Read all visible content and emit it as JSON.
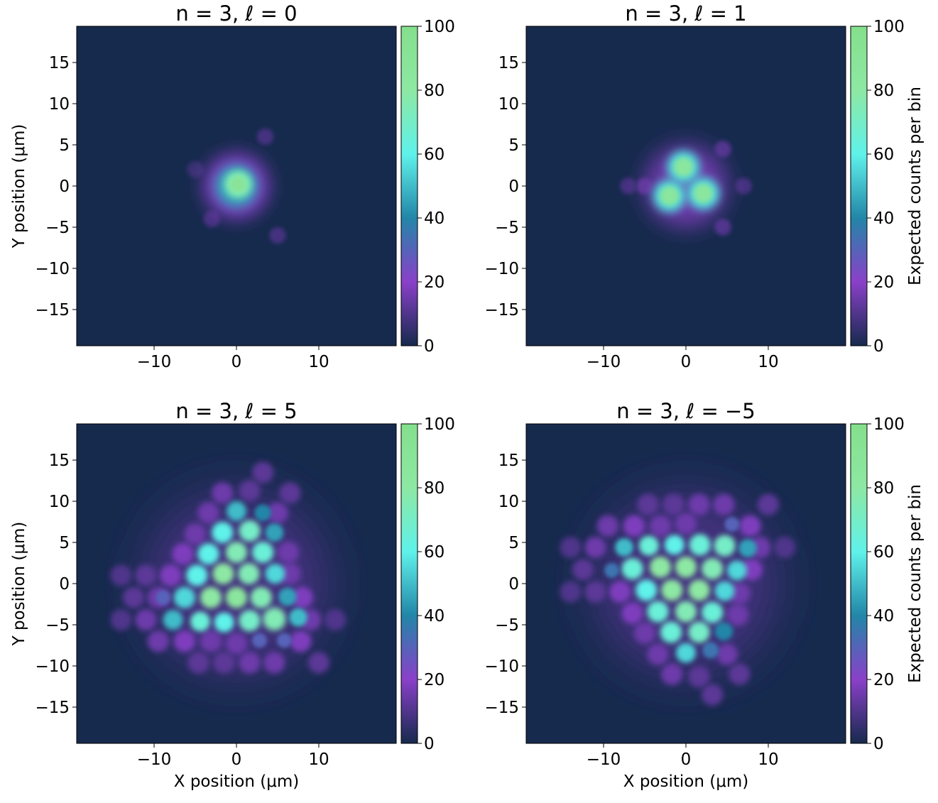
{
  "chart_data": [
    {
      "type": "heatmap",
      "title": "n = 3, ℓ = 0",
      "ylabel": "Y position (μm)",
      "xlim": [
        -19.4,
        19.4
      ],
      "ylim": [
        -19.4,
        19.4
      ],
      "xticks": [
        {
          "value": -10,
          "label": "−10"
        },
        0,
        10
      ],
      "yticks": [
        {
          "value": -15,
          "label": "−15"
        },
        {
          "value": -10,
          "label": "−10"
        },
        {
          "value": -5,
          "label": "−5"
        },
        0,
        5,
        10,
        15
      ],
      "clim": [
        0,
        100
      ],
      "cticks": [
        0,
        20,
        40,
        60,
        80,
        100
      ],
      "colormap": [
        "#162a4d",
        "#8a40c9",
        "#2286a8",
        "#5ff2ea",
        "#8de8a3",
        "#84e08c"
      ],
      "spots": [
        {
          "x": 3.5,
          "y": 6,
          "r": 1,
          "value": 8
        },
        {
          "x": -3,
          "y": -4,
          "r": 1,
          "value": 8
        },
        {
          "x": 5,
          "y": -6,
          "r": 1,
          "value": 8
        },
        {
          "x": -5,
          "y": 2,
          "r": 1,
          "value": 6
        },
        {
          "x": 0,
          "y": 0,
          "r": 4,
          "value": 18
        },
        {
          "x": 0,
          "y": 0,
          "r": 2.6,
          "value": 45
        },
        {
          "x": 0.2,
          "y": 0.2,
          "r": 1.7,
          "value": 75
        },
        {
          "x": 0.2,
          "y": 0.2,
          "r": 1,
          "value": 90
        }
      ]
    },
    {
      "type": "heatmap",
      "title": "n = 3, ℓ = 1",
      "colorbar_label": "Expected counts per bin",
      "xlim": [
        -19.4,
        19.4
      ],
      "ylim": [
        -19.4,
        19.4
      ],
      "xticks": [
        {
          "value": -10,
          "label": "−10"
        },
        0,
        10
      ],
      "yticks": [
        {
          "value": -15,
          "label": "−15"
        },
        {
          "value": -10,
          "label": "−10"
        },
        {
          "value": -5,
          "label": "−5"
        },
        0,
        5,
        10,
        15
      ],
      "clim": [
        0,
        100
      ],
      "cticks": [
        0,
        20,
        40,
        60,
        80,
        100
      ],
      "colormap": [
        "#162a4d",
        "#8a40c9",
        "#2286a8",
        "#5ff2ea",
        "#8de8a3",
        "#84e08c"
      ],
      "spots": [
        {
          "x": -5,
          "y": 0,
          "r": 1,
          "value": 12
        },
        {
          "x": -7,
          "y": 0,
          "r": 1,
          "value": 8
        },
        {
          "x": 4.5,
          "y": 4.5,
          "r": 1,
          "value": 10
        },
        {
          "x": 4.5,
          "y": -5,
          "r": 1,
          "value": 10
        },
        {
          "x": 7,
          "y": 0,
          "r": 1,
          "value": 8
        },
        {
          "x": 0,
          "y": 0,
          "r": 5,
          "value": 15
        },
        {
          "x": -0.3,
          "y": 2.3,
          "r": 2,
          "value": 55
        },
        {
          "x": -2,
          "y": -1.2,
          "r": 2,
          "value": 55
        },
        {
          "x": 2.1,
          "y": -0.9,
          "r": 2,
          "value": 55
        },
        {
          "x": -0.3,
          "y": 2.3,
          "r": 1.2,
          "value": 85
        },
        {
          "x": -2,
          "y": -1.2,
          "r": 1.2,
          "value": 85
        },
        {
          "x": 2.1,
          "y": -0.9,
          "r": 1.2,
          "value": 85
        }
      ]
    },
    {
      "type": "heatmap",
      "title": "n = 3, ℓ = 5",
      "xlabel": "X position (μm)",
      "ylabel": "Y position (μm)",
      "xlim": [
        -19.4,
        19.4
      ],
      "ylim": [
        -19.4,
        19.4
      ],
      "xticks": [
        {
          "value": -10,
          "label": "−10"
        },
        0,
        10
      ],
      "yticks": [
        {
          "value": -15,
          "label": "−15"
        },
        {
          "value": -10,
          "label": "−10"
        },
        {
          "value": -5,
          "label": "−5"
        },
        0,
        5,
        10,
        15
      ],
      "clim": [
        0,
        100
      ],
      "cticks": [
        0,
        20,
        40,
        60,
        80,
        100
      ],
      "colormap": [
        "#162a4d",
        "#8a40c9",
        "#2286a8",
        "#5ff2ea",
        "#8de8a3",
        "#84e08c"
      ],
      "spots": [
        {
          "x": 0,
          "y": 0,
          "r": 11,
          "value": 8
        },
        {
          "x": -1.7,
          "y": 11,
          "r": 1.3,
          "value": 15
        },
        {
          "x": 1.6,
          "y": 11.3,
          "r": 1.3,
          "value": 12
        },
        {
          "x": -3.4,
          "y": 8.6,
          "r": 1.3,
          "value": 15
        },
        {
          "x": -5,
          "y": 6,
          "r": 1.3,
          "value": 15
        },
        {
          "x": -6.5,
          "y": 3.6,
          "r": 1.3,
          "value": 18
        },
        {
          "x": -8,
          "y": 1,
          "r": 1.3,
          "value": 18
        },
        {
          "x": -9.5,
          "y": -1.7,
          "r": 1.3,
          "value": 15
        },
        {
          "x": -11,
          "y": 1,
          "r": 1.3,
          "value": 12
        },
        {
          "x": -12.5,
          "y": -1.7,
          "r": 1.3,
          "value": 12
        },
        {
          "x": -11,
          "y": -4.4,
          "r": 1.3,
          "value": 15
        },
        {
          "x": -9.5,
          "y": -7,
          "r": 1.3,
          "value": 15
        },
        {
          "x": -6.3,
          "y": -7,
          "r": 1.3,
          "value": 18
        },
        {
          "x": -3.1,
          "y": -7,
          "r": 1.3,
          "value": 15
        },
        {
          "x": 0,
          "y": -7.3,
          "r": 1.3,
          "value": 15
        },
        {
          "x": -4.6,
          "y": -9.6,
          "r": 1.3,
          "value": 12
        },
        {
          "x": -1.5,
          "y": -9.6,
          "r": 1.3,
          "value": 12
        },
        {
          "x": 1.6,
          "y": -9.6,
          "r": 1.3,
          "value": 15
        },
        {
          "x": 4.6,
          "y": -9.6,
          "r": 1.3,
          "value": 15
        },
        {
          "x": 7.8,
          "y": -7,
          "r": 1.3,
          "value": 18
        },
        {
          "x": 9,
          "y": -4.4,
          "r": 1.3,
          "value": 15
        },
        {
          "x": 8,
          "y": -1.7,
          "r": 1.3,
          "value": 18
        },
        {
          "x": 6.5,
          "y": 1.2,
          "r": 1.3,
          "value": 15
        },
        {
          "x": 6.3,
          "y": 3.8,
          "r": 1.3,
          "value": 15
        },
        {
          "x": 5,
          "y": 8.6,
          "r": 1.3,
          "value": 15
        },
        {
          "x": 6.5,
          "y": 11,
          "r": 1.3,
          "value": 12
        },
        {
          "x": 3.2,
          "y": 13.5,
          "r": 1.3,
          "value": 12
        },
        {
          "x": 10,
          "y": -9.6,
          "r": 1.3,
          "value": 12
        },
        {
          "x": 12,
          "y": -4.4,
          "r": 1.3,
          "value": 10
        },
        {
          "x": -14,
          "y": -4.4,
          "r": 1.3,
          "value": 10
        },
        {
          "x": -14,
          "y": 1,
          "r": 1.3,
          "value": 10
        },
        {
          "x": 0,
          "y": 8.8,
          "r": 1.2,
          "value": 50
        },
        {
          "x": 3.2,
          "y": 8.6,
          "r": 1,
          "value": 40
        },
        {
          "x": -1.7,
          "y": 6.2,
          "r": 1.3,
          "value": 60
        },
        {
          "x": 1.6,
          "y": 6.4,
          "r": 1.3,
          "value": 70
        },
        {
          "x": 4.6,
          "y": 6.2,
          "r": 1.1,
          "value": 45
        },
        {
          "x": -3.4,
          "y": 3.6,
          "r": 1.3,
          "value": 60
        },
        {
          "x": 0,
          "y": 3.8,
          "r": 1.3,
          "value": 75
        },
        {
          "x": 3.2,
          "y": 3.8,
          "r": 1.3,
          "value": 65
        },
        {
          "x": -4.8,
          "y": 1,
          "r": 1.3,
          "value": 60
        },
        {
          "x": -1.6,
          "y": 1.2,
          "r": 1.3,
          "value": 80
        },
        {
          "x": 1.5,
          "y": 1.2,
          "r": 1.3,
          "value": 75
        },
        {
          "x": 4.7,
          "y": 1.2,
          "r": 1.2,
          "value": 55
        },
        {
          "x": -6.3,
          "y": -1.7,
          "r": 1.3,
          "value": 55
        },
        {
          "x": -3.1,
          "y": -1.7,
          "r": 1.3,
          "value": 80
        },
        {
          "x": 0,
          "y": -1.7,
          "r": 1.3,
          "value": 85
        },
        {
          "x": 3,
          "y": -1.7,
          "r": 1.3,
          "value": 75
        },
        {
          "x": 6.2,
          "y": -1.6,
          "r": 1.1,
          "value": 45
        },
        {
          "x": -7.7,
          "y": -4.4,
          "r": 1.2,
          "value": 50
        },
        {
          "x": -4.4,
          "y": -4.6,
          "r": 1.2,
          "value": 65
        },
        {
          "x": -1.5,
          "y": -4.7,
          "r": 1.2,
          "value": 60
        },
        {
          "x": 1.6,
          "y": -4.5,
          "r": 1.3,
          "value": 70
        },
        {
          "x": 4.6,
          "y": -4.3,
          "r": 1.4,
          "value": 75
        },
        {
          "x": 7.5,
          "y": -4.1,
          "r": 1.1,
          "value": 50
        },
        {
          "x": 2.8,
          "y": -6.9,
          "r": 0.9,
          "value": 30
        },
        {
          "x": 5.8,
          "y": -6.9,
          "r": 0.9,
          "value": 30
        },
        {
          "x": -8.9,
          "y": -1.7,
          "r": 0.9,
          "value": 30
        }
      ]
    },
    {
      "type": "heatmap",
      "title": "n = 3, ℓ = −5",
      "xlabel": "X position (μm)",
      "colorbar_label": "Expected counts per bin",
      "xlim": [
        -19.4,
        19.4
      ],
      "ylim": [
        -19.4,
        19.4
      ],
      "xticks": [
        {
          "value": -10,
          "label": "−10"
        },
        0,
        10
      ],
      "yticks": [
        {
          "value": -15,
          "label": "−15"
        },
        {
          "value": -10,
          "label": "−10"
        },
        {
          "value": -5,
          "label": "−5"
        },
        0,
        5,
        10,
        15
      ],
      "clim": [
        0,
        100
      ],
      "cticks": [
        0,
        20,
        40,
        60,
        80,
        100
      ],
      "colormap": [
        "#162a4d",
        "#8a40c9",
        "#2286a8",
        "#5ff2ea",
        "#8de8a3",
        "#84e08c"
      ],
      "spots": [
        {
          "x": 0,
          "y": 0,
          "r": 11,
          "value": 8
        },
        {
          "x": -1.7,
          "y": -11,
          "r": 1.3,
          "value": 15
        },
        {
          "x": 1.6,
          "y": -11.3,
          "r": 1.3,
          "value": 12
        },
        {
          "x": -3.4,
          "y": -8.6,
          "r": 1.3,
          "value": 15
        },
        {
          "x": -5,
          "y": -6,
          "r": 1.3,
          "value": 15
        },
        {
          "x": -6.5,
          "y": -3.6,
          "r": 1.3,
          "value": 18
        },
        {
          "x": -8,
          "y": -1,
          "r": 1.3,
          "value": 18
        },
        {
          "x": -11,
          "y": -1,
          "r": 1.3,
          "value": 12
        },
        {
          "x": -12.5,
          "y": 1.7,
          "r": 1.3,
          "value": 12
        },
        {
          "x": -11,
          "y": 4.4,
          "r": 1.3,
          "value": 15
        },
        {
          "x": -9.5,
          "y": 7,
          "r": 1.3,
          "value": 15
        },
        {
          "x": -6.3,
          "y": 7,
          "r": 1.3,
          "value": 18
        },
        {
          "x": -3.1,
          "y": 7,
          "r": 1.3,
          "value": 15
        },
        {
          "x": 0,
          "y": 7.3,
          "r": 1.3,
          "value": 15
        },
        {
          "x": -4.6,
          "y": 9.6,
          "r": 1.3,
          "value": 12
        },
        {
          "x": -1.5,
          "y": 9.6,
          "r": 1.3,
          "value": 12
        },
        {
          "x": 1.6,
          "y": 9.6,
          "r": 1.3,
          "value": 15
        },
        {
          "x": 4.6,
          "y": 9.6,
          "r": 1.3,
          "value": 15
        },
        {
          "x": 7.8,
          "y": 7,
          "r": 1.3,
          "value": 18
        },
        {
          "x": 9,
          "y": 4.4,
          "r": 1.3,
          "value": 15
        },
        {
          "x": 8,
          "y": 1.7,
          "r": 1.3,
          "value": 18
        },
        {
          "x": 6.5,
          "y": -1.2,
          "r": 1.3,
          "value": 15
        },
        {
          "x": 6.3,
          "y": -3.8,
          "r": 1.3,
          "value": 15
        },
        {
          "x": 5,
          "y": -8.6,
          "r": 1.3,
          "value": 15
        },
        {
          "x": 6.5,
          "y": -11,
          "r": 1.3,
          "value": 12
        },
        {
          "x": 3.2,
          "y": -13.5,
          "r": 1.3,
          "value": 12
        },
        {
          "x": 10,
          "y": 9.6,
          "r": 1.3,
          "value": 12
        },
        {
          "x": 12,
          "y": 4.4,
          "r": 1.3,
          "value": 10
        },
        {
          "x": -14,
          "y": 4.4,
          "r": 1.3,
          "value": 10
        },
        {
          "x": -14,
          "y": -1,
          "r": 1.3,
          "value": 10
        },
        {
          "x": 0,
          "y": -8.4,
          "r": 1.2,
          "value": 55
        },
        {
          "x": 3,
          "y": -8.1,
          "r": 1,
          "value": 35
        },
        {
          "x": -1.8,
          "y": -5.9,
          "r": 1.3,
          "value": 65
        },
        {
          "x": 1.6,
          "y": -5.9,
          "r": 1.3,
          "value": 70
        },
        {
          "x": 4.6,
          "y": -5.8,
          "r": 1.1,
          "value": 40
        },
        {
          "x": -3.4,
          "y": -3.4,
          "r": 1.3,
          "value": 65
        },
        {
          "x": 0,
          "y": -3.4,
          "r": 1.3,
          "value": 75
        },
        {
          "x": 3.2,
          "y": -3.5,
          "r": 1.3,
          "value": 65
        },
        {
          "x": -4.8,
          "y": -0.8,
          "r": 1.3,
          "value": 60
        },
        {
          "x": -1.7,
          "y": -0.8,
          "r": 1.3,
          "value": 80
        },
        {
          "x": 1.6,
          "y": -0.8,
          "r": 1.3,
          "value": 80
        },
        {
          "x": 4.7,
          "y": -0.9,
          "r": 1.2,
          "value": 55
        },
        {
          "x": -6.5,
          "y": 1.8,
          "r": 1.3,
          "value": 65
        },
        {
          "x": -3.1,
          "y": 2,
          "r": 1.3,
          "value": 80
        },
        {
          "x": 0,
          "y": 2,
          "r": 1.3,
          "value": 80
        },
        {
          "x": 3.2,
          "y": 1.8,
          "r": 1.3,
          "value": 75
        },
        {
          "x": 6.2,
          "y": 1.6,
          "r": 1.2,
          "value": 55
        },
        {
          "x": -7.5,
          "y": 4.4,
          "r": 1.1,
          "value": 50
        },
        {
          "x": -4.5,
          "y": 4.6,
          "r": 1.2,
          "value": 65
        },
        {
          "x": -1.4,
          "y": 4.7,
          "r": 1.2,
          "value": 60
        },
        {
          "x": 1.7,
          "y": 4.7,
          "r": 1.3,
          "value": 65
        },
        {
          "x": 4.7,
          "y": 4.6,
          "r": 1.3,
          "value": 70
        },
        {
          "x": 7.5,
          "y": 4.3,
          "r": 1.1,
          "value": 45
        },
        {
          "x": -9,
          "y": 1.6,
          "r": 0.9,
          "value": 35
        },
        {
          "x": 5.6,
          "y": 7.2,
          "r": 0.9,
          "value": 30
        }
      ]
    }
  ]
}
